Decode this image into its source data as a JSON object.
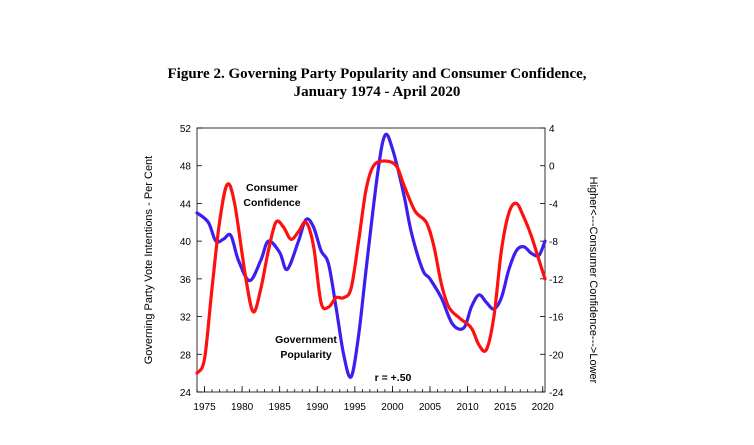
{
  "chart_data": {
    "type": "line",
    "title_line1": "Figure 2. Governing Party Popularity and Consumer Confidence,",
    "title_line2": "January 1974 - April 2020",
    "ylabel_left": "Governing Party Vote Intentions - Per Cent",
    "ylabel_right": "Higher<---Consumer Confidence--->Lower",
    "x_ticks": [
      1975,
      1980,
      1985,
      1990,
      1995,
      2000,
      2005,
      2010,
      2015,
      2020
    ],
    "xlim": [
      1974,
      2020.3
    ],
    "y_left": {
      "ticks": [
        24,
        28,
        32,
        36,
        40,
        44,
        48,
        52
      ],
      "lim": [
        24,
        52
      ]
    },
    "y_right": {
      "ticks": [
        -24,
        -20,
        -16,
        -12,
        -8,
        -4,
        0,
        4
      ],
      "lim": [
        -24,
        4
      ]
    },
    "annotations": [
      {
        "text_lines": [
          "Consumer",
          "Confidence"
        ],
        "series": "Consumer Confidence"
      },
      {
        "text_lines": [
          "Government",
          "Popularity"
        ],
        "series": "Government Popularity"
      },
      {
        "text_lines": [
          "r = +.50"
        ],
        "series": ""
      }
    ],
    "series": [
      {
        "name": "Government Popularity",
        "axis": "left",
        "color": "#3b1ff0",
        "points": [
          [
            1974,
            43
          ],
          [
            1975.5,
            42
          ],
          [
            1976.5,
            40
          ],
          [
            1977.5,
            40.2
          ],
          [
            1978.5,
            40.6
          ],
          [
            1979.5,
            38
          ],
          [
            1981,
            35.8
          ],
          [
            1982.5,
            38
          ],
          [
            1983.5,
            40
          ],
          [
            1985,
            38.8
          ],
          [
            1986,
            37
          ],
          [
            1987.5,
            40
          ],
          [
            1988.5,
            42.3
          ],
          [
            1989.5,
            41.5
          ],
          [
            1990.5,
            39
          ],
          [
            1991.5,
            37.6
          ],
          [
            1992.5,
            33
          ],
          [
            1993.5,
            28
          ],
          [
            1994.5,
            25.6
          ],
          [
            1995.5,
            30
          ],
          [
            1996.5,
            37
          ],
          [
            1998,
            47
          ],
          [
            1999,
            51.2
          ],
          [
            2000,
            49.8
          ],
          [
            2001.5,
            45
          ],
          [
            2002.5,
            41
          ],
          [
            2004,
            37
          ],
          [
            2005,
            36
          ],
          [
            2006.5,
            34
          ],
          [
            2008,
            31.2
          ],
          [
            2009.5,
            30.8
          ],
          [
            2010.5,
            33
          ],
          [
            2011.5,
            34.3
          ],
          [
            2012.5,
            33.5
          ],
          [
            2013.5,
            32.8
          ],
          [
            2014.5,
            34
          ],
          [
            2015.5,
            37
          ],
          [
            2016.5,
            39
          ],
          [
            2017.5,
            39.4
          ],
          [
            2018.5,
            38.7
          ],
          [
            2019.5,
            38.5
          ],
          [
            2020.3,
            40
          ]
        ]
      },
      {
        "name": "Consumer Confidence",
        "axis": "right",
        "color": "#ff1010",
        "points": [
          [
            1974,
            -22
          ],
          [
            1975,
            -20.5
          ],
          [
            1976,
            -13
          ],
          [
            1977,
            -6
          ],
          [
            1978,
            -2
          ],
          [
            1979,
            -4
          ],
          [
            1980.5,
            -12
          ],
          [
            1981.5,
            -15.5
          ],
          [
            1982.5,
            -13
          ],
          [
            1983.5,
            -9
          ],
          [
            1984.5,
            -6
          ],
          [
            1985.5,
            -6.5
          ],
          [
            1986.5,
            -7.8
          ],
          [
            1987.5,
            -7
          ],
          [
            1988.5,
            -6
          ],
          [
            1989.5,
            -8.5
          ],
          [
            1990.5,
            -14.5
          ],
          [
            1991.5,
            -15
          ],
          [
            1992.5,
            -14
          ],
          [
            1993.5,
            -14
          ],
          [
            1994.5,
            -13
          ],
          [
            1995.5,
            -8
          ],
          [
            1996.5,
            -2.5
          ],
          [
            1997.5,
            0
          ],
          [
            1999,
            0.5
          ],
          [
            2000.5,
            0
          ],
          [
            2001.5,
            -2
          ],
          [
            2003,
            -4.8
          ],
          [
            2004.5,
            -6
          ],
          [
            2005.5,
            -8.5
          ],
          [
            2006.5,
            -12.5
          ],
          [
            2007.5,
            -15
          ],
          [
            2009,
            -16.2
          ],
          [
            2010.5,
            -17.2
          ],
          [
            2011.5,
            -19
          ],
          [
            2012.5,
            -19.5
          ],
          [
            2013.5,
            -16
          ],
          [
            2014.5,
            -9
          ],
          [
            2015.5,
            -5
          ],
          [
            2016.5,
            -4
          ],
          [
            2017.5,
            -5.5
          ],
          [
            2018.5,
            -7.5
          ],
          [
            2019.5,
            -10
          ],
          [
            2020.3,
            -12
          ]
        ]
      }
    ]
  }
}
